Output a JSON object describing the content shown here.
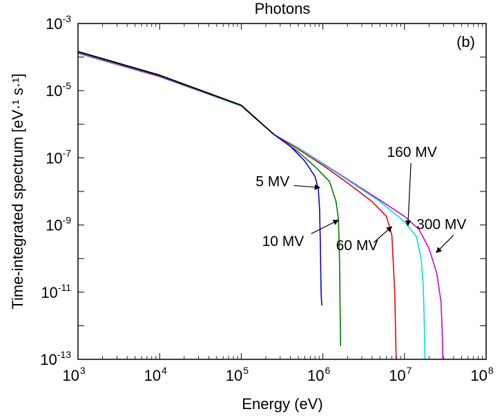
{
  "chart_data": {
    "type": "line",
    "title": "Photons",
    "panel_label": "(b)",
    "xlabel": "Energy (eV)",
    "ylabel": "Time-integrated spectrum [eV·¹ s·¹]",
    "xscale": "log",
    "yscale": "log",
    "xlim": [
      1000,
      100000000
    ],
    "ylim": [
      1e-13,
      0.001
    ],
    "x_ticks": [
      {
        "value": 1000,
        "base": "10",
        "exp": "3"
      },
      {
        "value": 10000,
        "base": "10",
        "exp": "4"
      },
      {
        "value": 100000,
        "base": "10",
        "exp": "5"
      },
      {
        "value": 1000000,
        "base": "10",
        "exp": "6"
      },
      {
        "value": 10000000,
        "base": "10",
        "exp": "7"
      },
      {
        "value": 100000000,
        "base": "10",
        "exp": "8"
      }
    ],
    "y_ticks": [
      {
        "value": 0.001,
        "base": "10",
        "exp": "-3"
      },
      {
        "value": 1e-05,
        "base": "10",
        "exp": "-5"
      },
      {
        "value": 1e-07,
        "base": "10",
        "exp": "-7"
      },
      {
        "value": 1e-09,
        "base": "10",
        "exp": "-9"
      },
      {
        "value": 1e-11,
        "base": "10",
        "exp": "-11"
      },
      {
        "value": 1e-13,
        "base": "10",
        "exp": "-13"
      }
    ],
    "series": [
      {
        "color": "#d000d0",
        "points": [
          [
            1000,
            0.00013
          ],
          [
            10000,
            2.6e-05
          ],
          [
            100000,
            3.5e-06
          ],
          [
            250000,
            5e-07
          ],
          [
            500000,
            2e-07
          ],
          [
            1000000,
            6.8e-08
          ],
          [
            2000000,
            2.3e-08
          ],
          [
            5000000,
            5.5e-09
          ],
          [
            10000000,
            1.8e-09
          ],
          [
            15000000,
            7.5e-10
          ],
          [
            20000000,
            2e-10
          ],
          [
            25000000,
            3.5e-11
          ],
          [
            28000000,
            5e-12
          ],
          [
            29000000,
            6e-13
          ],
          [
            29500000,
            1e-13
          ]
        ]
      },
      {
        "color": "#00dede",
        "points": [
          [
            1000,
            0.000135
          ],
          [
            10000,
            2.7e-05
          ],
          [
            100000,
            3.5e-06
          ],
          [
            250000,
            5e-07
          ],
          [
            500000,
            2e-07
          ],
          [
            1000000,
            6.6e-08
          ],
          [
            2000000,
            2.2e-08
          ],
          [
            5000000,
            5e-09
          ],
          [
            10000000,
            1.25e-09
          ],
          [
            14000000,
            4.5e-10
          ],
          [
            16000000,
            1e-10
          ],
          [
            17000000,
            1.5e-11
          ],
          [
            17500000,
            1e-12
          ],
          [
            17800000,
            1e-13
          ]
        ]
      },
      {
        "color": "#ee0000",
        "points": [
          [
            1000,
            0.00014
          ],
          [
            10000,
            2.75e-05
          ],
          [
            100000,
            3.6e-06
          ],
          [
            250000,
            5e-07
          ],
          [
            500000,
            1.8e-07
          ],
          [
            1000000,
            6e-08
          ],
          [
            2000000,
            1.8e-08
          ],
          [
            4000000,
            5e-09
          ],
          [
            6000000,
            1.8e-09
          ],
          [
            7000000,
            5e-10
          ],
          [
            7600000,
            1e-11
          ],
          [
            7900000,
            1e-13
          ]
        ]
      },
      {
        "color": "#007a00",
        "points": [
          [
            1000,
            0.000142
          ],
          [
            10000,
            2.8e-05
          ],
          [
            100000,
            3.6e-06
          ],
          [
            250000,
            5e-07
          ],
          [
            500000,
            1.5e-07
          ],
          [
            800000,
            5.5e-08
          ],
          [
            1200000,
            2e-08
          ],
          [
            1450000,
            5e-09
          ],
          [
            1550000,
            1.5e-09
          ],
          [
            1600000,
            1e-10
          ],
          [
            1620000,
            5e-12
          ],
          [
            1650000,
            2.5e-13
          ]
        ]
      },
      {
        "color": "#0000dd",
        "points": [
          [
            1000,
            0.000145
          ],
          [
            10000,
            2.85e-05
          ],
          [
            100000,
            3.7e-06
          ],
          [
            250000,
            5e-07
          ],
          [
            400000,
            2.2e-07
          ],
          [
            600000,
            8e-08
          ],
          [
            800000,
            2.8e-08
          ],
          [
            880000,
            1.2e-08
          ],
          [
            910000,
            3e-09
          ],
          [
            930000,
            3e-10
          ],
          [
            950000,
            1e-11
          ],
          [
            970000,
            4e-12
          ]
        ]
      },
      {
        "color": "#000000",
        "points": [
          [
            1000,
            0.000147
          ],
          [
            10000,
            2.9e-05
          ],
          [
            100000,
            3.7e-06
          ],
          [
            250000,
            5e-07
          ]
        ]
      }
    ],
    "annotations": [
      {
        "text": "5 MV",
        "anchor": "start",
        "label_at": [
          150000,
          2e-08
        ],
        "arrow_from": [
          440000,
          1.5e-08
        ],
        "arrow_to": [
          920000,
          1.3e-08
        ]
      },
      {
        "text": "10 MV",
        "anchor": "start",
        "label_at": [
          180000,
          3.3e-10
        ],
        "arrow_from": [
          720000,
          5.5e-10
        ],
        "arrow_to": [
          1550000,
          1.4e-09
        ]
      },
      {
        "text": "60 MV",
        "anchor": "start",
        "label_at": [
          1450000,
          2.5e-10
        ],
        "arrow_from": [
          4200000,
          3e-10
        ],
        "arrow_to": [
          7000000,
          9e-10
        ]
      },
      {
        "text": "160 MV",
        "anchor": "start",
        "label_at": [
          6100000,
          1.5e-07
        ],
        "arrow_from": [
          12000000,
          7e-08
        ],
        "arrow_to": [
          11000000,
          9.5e-10
        ]
      },
      {
        "text": "300 MV",
        "anchor": "start",
        "label_at": [
          14000000,
          1.05e-09
        ],
        "arrow_from": [
          40000000,
          5e-10
        ],
        "arrow_to": [
          24500000,
          1.5e-10
        ]
      }
    ]
  }
}
